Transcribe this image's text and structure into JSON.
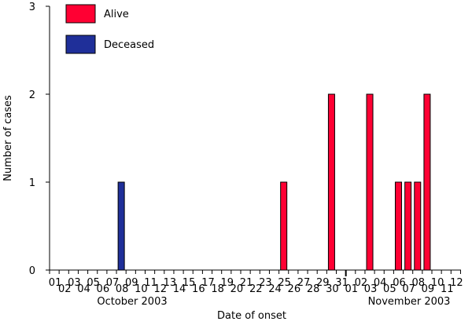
{
  "chart_data": {
    "type": "bar",
    "title": "",
    "xlabel": "Date of onset",
    "ylabel": "Number of cases",
    "ylim": [
      0,
      3
    ],
    "yticks": [
      "0",
      "1",
      "2",
      "3"
    ],
    "x_tick_labels": [
      "01",
      "03",
      "05",
      "07",
      "09",
      "11",
      "13",
      "15",
      "17",
      "19",
      "21",
      "23",
      "25",
      "27",
      "29",
      "31",
      "02",
      "04",
      "06",
      "08",
      "10",
      "12"
    ],
    "x_tick_labels_offset": [
      "02",
      "04",
      "06",
      "08",
      "10",
      "12",
      "14",
      "16",
      "18",
      "20",
      "22",
      "24",
      "26",
      "28",
      "30",
      "01",
      "03",
      "05",
      "07",
      "09",
      "11"
    ],
    "month_labels": [
      "October 2003",
      "November 2003"
    ],
    "legend": [
      {
        "name": "Alive",
        "color": "#ff0033"
      },
      {
        "name": "Deceased",
        "color": "#1f2f99"
      }
    ],
    "series": [
      {
        "name": "Alive",
        "color": "#ff0033",
        "points": [
          {
            "date": "2003-10-25",
            "value": 1
          },
          {
            "date": "2003-10-30",
            "value": 2
          },
          {
            "date": "2003-11-03",
            "value": 2
          },
          {
            "date": "2003-11-06",
            "value": 1
          },
          {
            "date": "2003-11-07",
            "value": 1
          },
          {
            "date": "2003-11-08",
            "value": 1
          },
          {
            "date": "2003-11-09",
            "value": 2
          }
        ]
      },
      {
        "name": "Deceased",
        "color": "#1f2f99",
        "points": [
          {
            "date": "2003-10-08",
            "value": 1
          }
        ]
      }
    ]
  }
}
